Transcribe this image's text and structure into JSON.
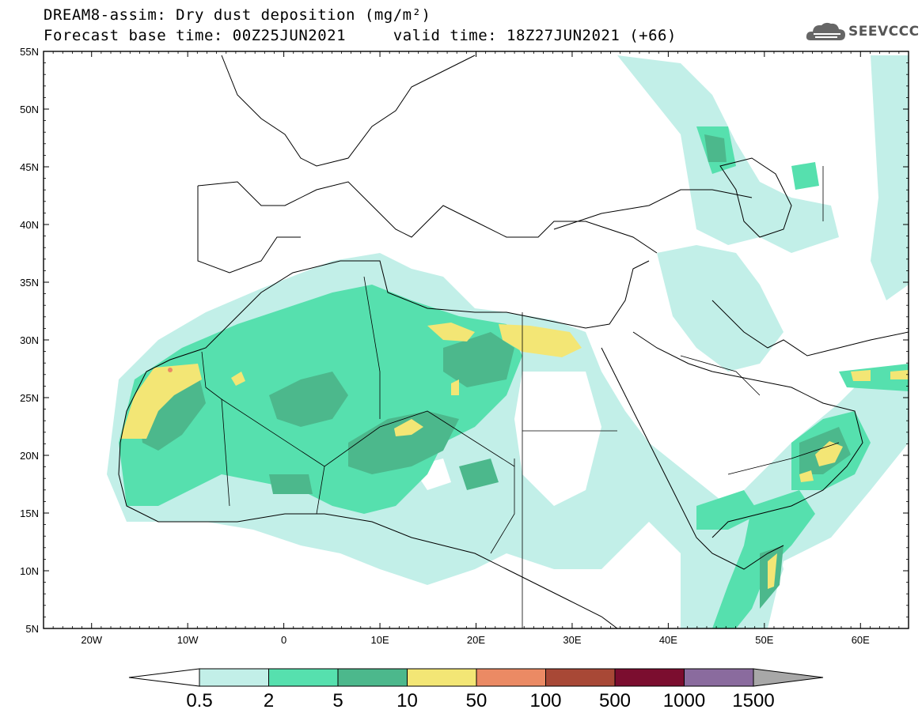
{
  "title": {
    "line1": "DREAM8-assim: Dry dust deposition (mg/m²)",
    "line2_base": "Forecast base time: 00Z25JUN2021",
    "line2_valid": "valid time: 18Z27JUN2021 (+66)"
  },
  "logo": {
    "text": "SEEVCCC",
    "icon": "cloud-logo-icon"
  },
  "axes": {
    "lat_labels": [
      "55N",
      "50N",
      "45N",
      "40N",
      "35N",
      "30N",
      "25N",
      "20N",
      "15N",
      "10N",
      "5N"
    ],
    "lon_labels": [
      "20W",
      "10W",
      "0",
      "10E",
      "20E",
      "30E",
      "40E",
      "50E",
      "60E"
    ],
    "lon_range": [
      -25,
      65
    ],
    "lat_range": [
      5,
      55
    ]
  },
  "legend": {
    "labels": [
      "0.5",
      "2",
      "5",
      "10",
      "50",
      "100",
      "500",
      "1000",
      "1500"
    ],
    "colors": [
      "#c2efe8",
      "#56e0ae",
      "#4cb88c",
      "#f3e675",
      "#eb8a64",
      "#a84836",
      "#7b0d2f",
      "#8a6b9e"
    ],
    "under_color": "#ffffff",
    "over_color": "#a8a8a8"
  }
}
